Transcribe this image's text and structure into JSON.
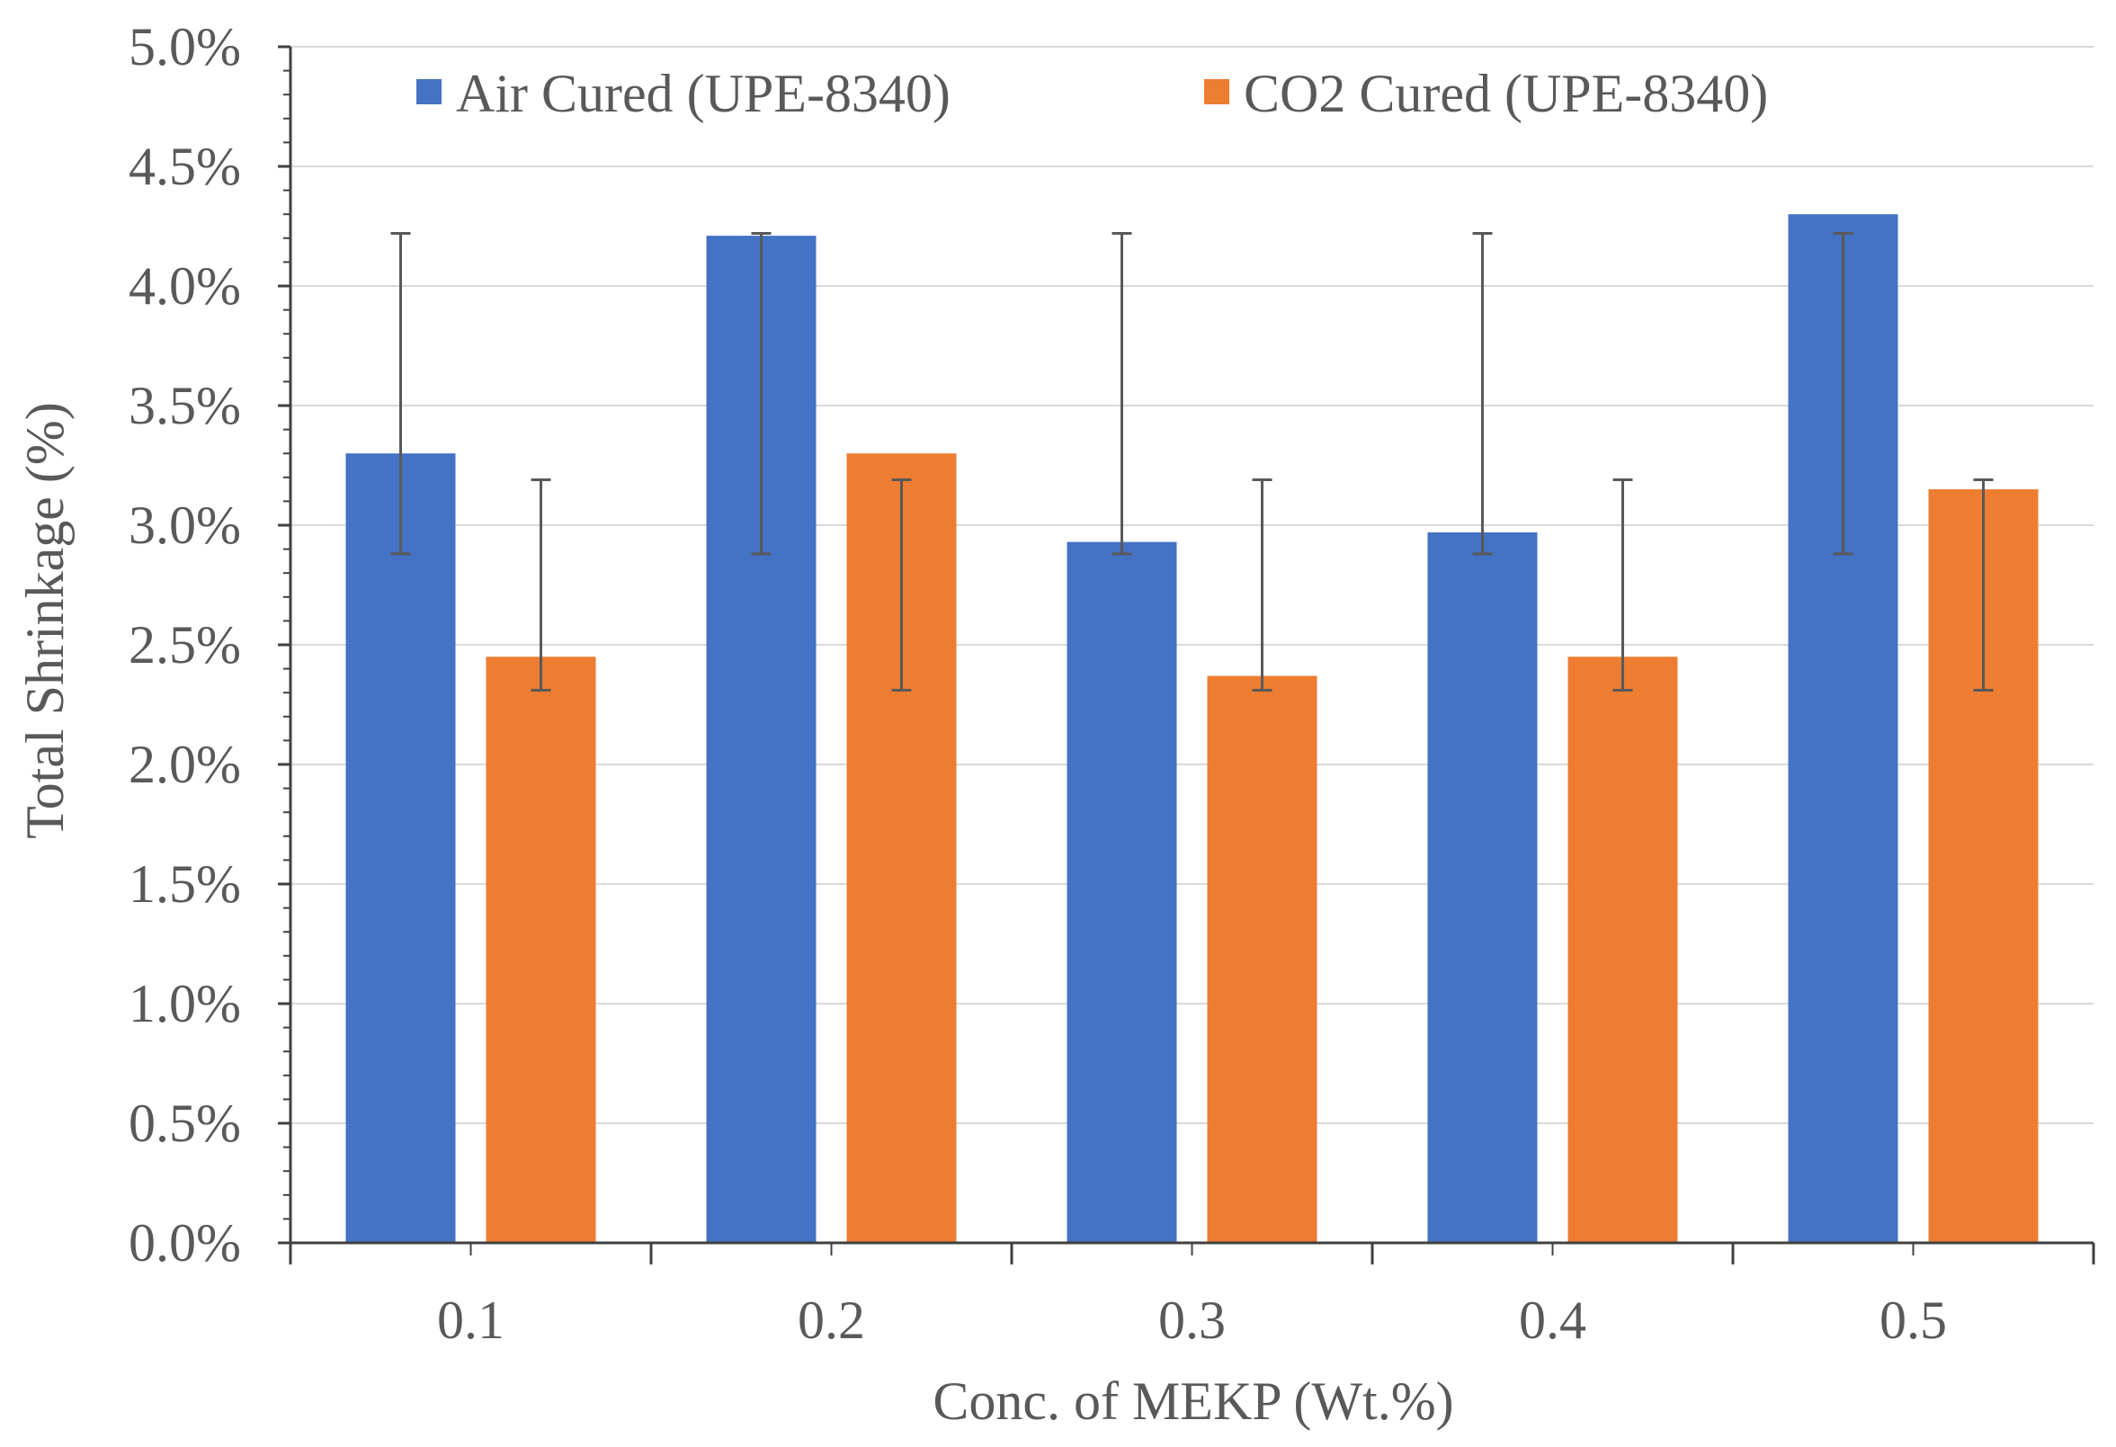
{
  "chart_data": {
    "type": "bar",
    "title": "",
    "xlabel": "Conc. of MEKP (Wt.%)",
    "ylabel": "Total  Shrinkage  (%)",
    "categories": [
      "0.1",
      "0.2",
      "0.3",
      "0.4",
      "0.5"
    ],
    "series": [
      {
        "name": "Air Cured (UPE-8340)",
        "color": "#4472C4",
        "values": [
          3.3,
          4.21,
          2.93,
          2.97,
          4.3
        ],
        "error_low": [
          2.88,
          2.88,
          2.88,
          2.88,
          2.88
        ],
        "error_high": [
          4.22,
          4.22,
          4.22,
          4.22,
          4.22
        ]
      },
      {
        "name": "CO2 Cured (UPE-8340)",
        "color": "#ED7D31",
        "values": [
          2.45,
          3.3,
          2.37,
          2.45,
          3.15
        ],
        "error_low": [
          2.31,
          2.31,
          2.31,
          2.31,
          2.31
        ],
        "error_high": [
          3.19,
          3.19,
          3.19,
          3.19,
          3.19
        ]
      }
    ],
    "ylim": [
      0,
      5
    ],
    "ytick_step": 0.5,
    "ytick_labels": [
      "0.0%",
      "0.5%",
      "1.0%",
      "1.5%",
      "2.0%",
      "2.5%",
      "3.0%",
      "3.5%",
      "4.0%",
      "4.5%",
      "5.0%"
    ],
    "grid": true,
    "legend_position": "top",
    "colors": {
      "grid": "#d9d9d9",
      "axis": "#404040",
      "error_bar": "#595959",
      "text": "#595959"
    }
  }
}
